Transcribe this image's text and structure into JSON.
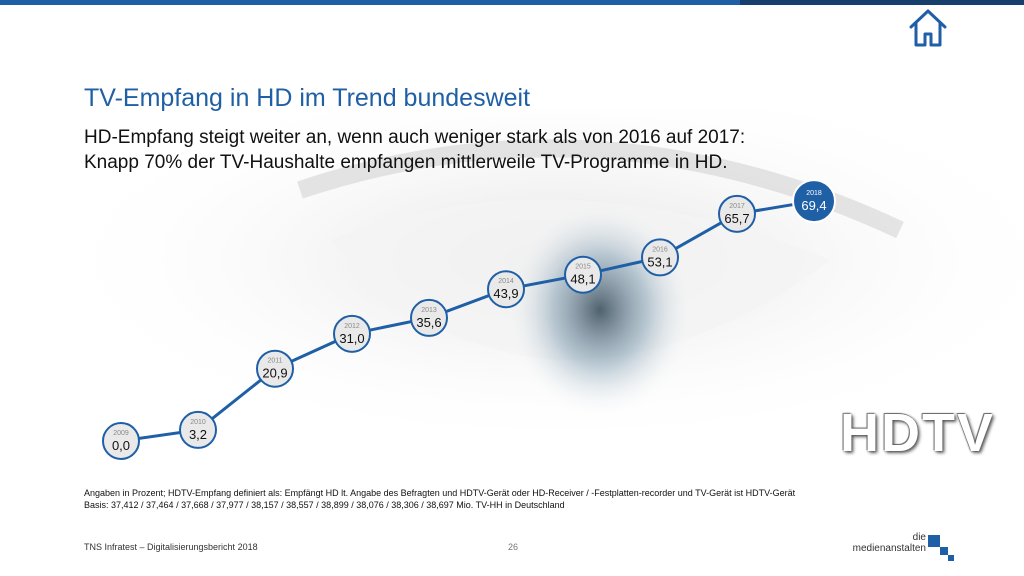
{
  "slide": {
    "title": "TV-Empfang in HD im Trend bundesweit",
    "subtitle_line1": "HD-Empfang steigt weiter an, wenn auch weniger stark als von 2016 auf 2017:",
    "subtitle_line2": "Knapp 70% der TV-Haushalte empfangen mittlerweile TV-Programme in HD.",
    "note_line1": "Angaben in Prozent; HDTV-Empfang definiert als: Empfängt HD lt. Angabe des Befragten und HDTV-Gerät oder HD-Receiver / -Festplatten-recorder und TV-Gerät ist HDTV-Gerät",
    "note_line2": "Basis: 37,412 / 37,464 / 37,668 / 37,977 / 38,157 / 38,557 / 38,899 / 38,076 / 38,306 / 38,697 Mio. TV-HH in Deutschland",
    "footer_source": "TNS Infratest – Digitalisierungsbericht 2018",
    "page_number": "26",
    "logo_line1": "die",
    "logo_line2": "medienanstalten",
    "watermark": "HDTV",
    "icon_home": "home-icon"
  },
  "colors": {
    "accent": "#1f5fa6",
    "line": "#1f5fa6",
    "highlight_fill": "#1f5fa6",
    "bubble_fill": "#e9e9e9"
  },
  "chart_data": {
    "type": "line",
    "x": [
      "2009",
      "2010",
      "2011",
      "2012",
      "2013",
      "2014",
      "2015",
      "2016",
      "2017",
      "2018"
    ],
    "series": [
      {
        "values": [
          0.0,
          3.2,
          20.9,
          31.0,
          35.6,
          43.9,
          48.1,
          53.1,
          65.7,
          69.4
        ]
      }
    ],
    "value_labels": [
      "0,0",
      "3,2",
      "20,9",
      "31,0",
      "35,6",
      "43,9",
      "48,1",
      "53,1",
      "65,7",
      "69,4"
    ],
    "highlight_last": true,
    "ylim": [
      0,
      70
    ],
    "grid": false,
    "legend": "none"
  }
}
